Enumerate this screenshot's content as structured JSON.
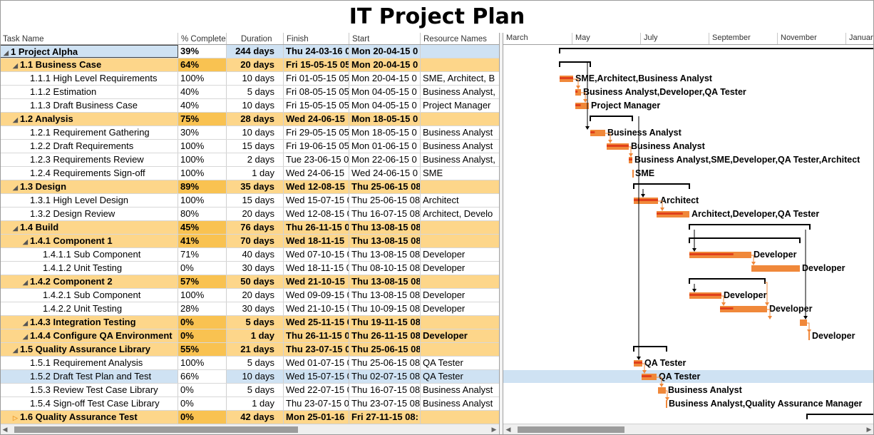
{
  "title": "IT Project Plan",
  "columns": {
    "task_name": "Task Name",
    "pct": "% Complete",
    "duration": "Duration",
    "finish": "Finish",
    "start": "Start",
    "resources": "Resource Names"
  },
  "months": [
    "March",
    "May",
    "July",
    "September",
    "November",
    "January"
  ],
  "colors": {
    "summary_row": "#fdd68a",
    "summary_pct": "#f9c251",
    "selected_row": "#cfe2f3",
    "bar": "#f0883a",
    "progress": "#e0401a"
  },
  "rows": [
    {
      "name": "1 Project Alpha",
      "pct": "39%",
      "dur": "244 days",
      "fin": "Thu 24-03-16 0",
      "start": "Mon 20-04-15 0",
      "res": "",
      "type": "summary",
      "level": 0,
      "state": "expanded",
      "selected": true
    },
    {
      "name": "1.1 Business Case",
      "pct": "64%",
      "dur": "20 days",
      "fin": "Fri 15-05-15 05",
      "start": "Mon 20-04-15 0",
      "res": "",
      "type": "summary",
      "level": 1,
      "state": "expanded"
    },
    {
      "name": "1.1.1 High Level Requirements",
      "pct": "100%",
      "dur": "10 days",
      "fin": "Fri 01-05-15 05",
      "start": "Mon 20-04-15 0",
      "res": "SME,  Architect,  B",
      "type": "task",
      "level": 2
    },
    {
      "name": "1.1.2 Estimation",
      "pct": "40%",
      "dur": "5 days",
      "fin": "Fri 08-05-15 05",
      "start": "Mon 04-05-15 0",
      "res": "Business Analyst,",
      "type": "task",
      "level": 2
    },
    {
      "name": "1.1.3 Draft Business Case",
      "pct": "40%",
      "dur": "10 days",
      "fin": "Fri 15-05-15 05",
      "start": "Mon 04-05-15 0",
      "res": "Project Manager",
      "type": "task",
      "level": 2
    },
    {
      "name": "1.2 Analysis",
      "pct": "75%",
      "dur": "28 days",
      "fin": "Wed 24-06-15",
      "start": "Mon 18-05-15 0",
      "res": "",
      "type": "summary",
      "level": 1,
      "state": "expanded"
    },
    {
      "name": "1.2.1 Requirement Gathering",
      "pct": "30%",
      "dur": "10 days",
      "fin": "Fri 29-05-15 05",
      "start": "Mon 18-05-15 0",
      "res": "Business Analyst",
      "type": "task",
      "level": 2
    },
    {
      "name": "1.2.2 Draft Requirements",
      "pct": "100%",
      "dur": "15 days",
      "fin": "Fri 19-06-15 05",
      "start": "Mon 01-06-15 0",
      "res": "Business Analyst",
      "type": "task",
      "level": 2
    },
    {
      "name": "1.2.3 Requirements Review",
      "pct": "100%",
      "dur": "2 days",
      "fin": "Tue 23-06-15 0",
      "start": "Mon 22-06-15 0",
      "res": "Business Analyst,",
      "type": "task",
      "level": 2
    },
    {
      "name": "1.2.4 Requirements Sign-off",
      "pct": "100%",
      "dur": "1 day",
      "fin": "Wed 24-06-15",
      "start": "Wed 24-06-15 0",
      "res": "SME",
      "type": "task",
      "level": 2
    },
    {
      "name": "1.3 Design",
      "pct": "89%",
      "dur": "35 days",
      "fin": "Wed 12-08-15",
      "start": "Thu 25-06-15 08",
      "res": "",
      "type": "summary",
      "level": 1,
      "state": "expanded"
    },
    {
      "name": "1.3.1 High Level Design",
      "pct": "100%",
      "dur": "15 days",
      "fin": "Wed 15-07-15 0",
      "start": "Thu 25-06-15 08",
      "res": "Architect",
      "type": "task",
      "level": 2
    },
    {
      "name": "1.3.2 Design Review",
      "pct": "80%",
      "dur": "20 days",
      "fin": "Wed 12-08-15 0",
      "start": "Thu 16-07-15 08",
      "res": "Architect,  Develo",
      "type": "task",
      "level": 2
    },
    {
      "name": "1.4 Build",
      "pct": "45%",
      "dur": "76 days",
      "fin": "Thu 26-11-15 0",
      "start": "Thu 13-08-15 08",
      "res": "",
      "type": "summary",
      "level": 1,
      "state": "expanded"
    },
    {
      "name": "1.4.1 Component 1",
      "pct": "41%",
      "dur": "70 days",
      "fin": "Wed 18-11-15",
      "start": "Thu 13-08-15 08",
      "res": "",
      "type": "subsummary",
      "level": 2,
      "state": "expanded"
    },
    {
      "name": "1.4.1.1 Sub Component",
      "pct": "71%",
      "dur": "40 days",
      "fin": "Wed 07-10-15 0",
      "start": "Thu 13-08-15 08",
      "res": "Developer",
      "type": "task",
      "level": 3
    },
    {
      "name": "1.4.1.2 Unit Testing",
      "pct": "0%",
      "dur": "30 days",
      "fin": "Wed 18-11-15 0",
      "start": "Thu 08-10-15 08",
      "res": "Developer",
      "type": "task",
      "level": 3
    },
    {
      "name": "1.4.2 Component 2",
      "pct": "57%",
      "dur": "50 days",
      "fin": "Wed 21-10-15",
      "start": "Thu 13-08-15 08",
      "res": "",
      "type": "subsummary",
      "level": 2,
      "state": "expanded"
    },
    {
      "name": "1.4.2.1 Sub Component",
      "pct": "100%",
      "dur": "20 days",
      "fin": "Wed 09-09-15 0",
      "start": "Thu 13-08-15 08",
      "res": "Developer",
      "type": "task",
      "level": 3
    },
    {
      "name": "1.4.2.2 Unit Testing",
      "pct": "28%",
      "dur": "30 days",
      "fin": "Wed 21-10-15 0",
      "start": "Thu 10-09-15 08",
      "res": "Developer",
      "type": "task",
      "level": 3
    },
    {
      "name": "1.4.3 Integration Testing",
      "pct": "0%",
      "dur": "5 days",
      "fin": "Wed 25-11-15 0",
      "start": "Thu 19-11-15 08",
      "res": "",
      "type": "summary",
      "level": 2
    },
    {
      "name": "1.4.4 Configure QA Environment",
      "pct": "0%",
      "dur": "1 day",
      "fin": "Thu 26-11-15 0",
      "start": "Thu 26-11-15 08",
      "res": "Developer",
      "type": "summary",
      "level": 2
    },
    {
      "name": "1.5 Quality Assurance Library",
      "pct": "55%",
      "dur": "21 days",
      "fin": "Thu 23-07-15 0",
      "start": "Thu 25-06-15 08",
      "res": "",
      "type": "summary",
      "level": 1,
      "state": "expanded"
    },
    {
      "name": "1.5.1 Requirement Analysis",
      "pct": "100%",
      "dur": "5 days",
      "fin": "Wed 01-07-15 0",
      "start": "Thu 25-06-15 08",
      "res": "QA Tester",
      "type": "task",
      "level": 2
    },
    {
      "name": "1.5.2 Draft Test Plan and Test",
      "pct": "66%",
      "dur": "10 days",
      "fin": "Wed 15-07-15 0",
      "start": "Thu 02-07-15 08",
      "res": "QA Tester",
      "type": "task",
      "level": 2,
      "selected": true
    },
    {
      "name": "1.5.3 Review Test Case Library",
      "pct": "0%",
      "dur": "5 days",
      "fin": "Wed 22-07-15 0",
      "start": "Thu 16-07-15 08",
      "res": "Business Analyst",
      "type": "task",
      "level": 2
    },
    {
      "name": "1.5.4 Sign-off Test Case Library",
      "pct": "0%",
      "dur": "1 day",
      "fin": "Thu 23-07-15 0",
      "start": "Thu 23-07-15 08",
      "res": "Business Analyst",
      "type": "task",
      "level": 2
    },
    {
      "name": "1.6 Quality Assurance Test",
      "pct": "0%",
      "dur": "42 days",
      "fin": "Mon 25-01-16",
      "start": "Fri 27-11-15 08:",
      "res": "",
      "type": "summary",
      "level": 1,
      "state": "collapsed"
    }
  ],
  "gantt_labels": [
    "",
    "",
    "SME,Architect,Business Analyst",
    "Business Analyst,Developer,QA Tester",
    "Project Manager",
    "",
    "Business Analyst",
    "Business Analyst",
    "Business Analyst,SME,Developer,QA Tester,Architect",
    "SME",
    "",
    "Architect",
    "Architect,Developer,QA Tester",
    "",
    "",
    "Developer",
    "Developer",
    "",
    "Developer",
    "Developer",
    "",
    "Developer",
    "",
    "QA Tester",
    "QA Tester",
    "Business Analyst",
    "Business Analyst,Quality Assurance Manager",
    ""
  ]
}
